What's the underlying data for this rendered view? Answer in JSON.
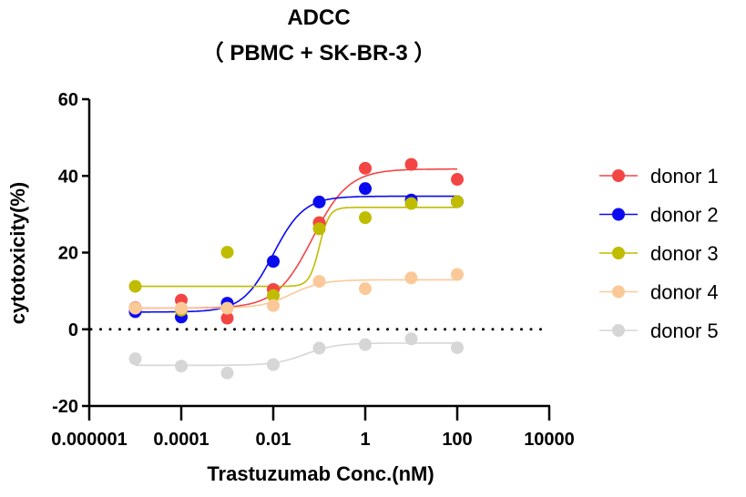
{
  "chart_data": {
    "type": "scatter",
    "title": "ADCC",
    "subtitle": "（ PBMC + SK-BR-3 ）",
    "xlabel": "Trastuzumab Conc.(nM)",
    "ylabel": "cytotoxicity(%)",
    "xscale": "log",
    "xlim": [
      1e-06,
      10000
    ],
    "ylim": [
      -20,
      60
    ],
    "xticks": [
      "0.000001",
      "0.0001",
      "0.01",
      "1",
      "100",
      "10000"
    ],
    "xtick_values": [
      1e-06,
      0.0001,
      0.01,
      1,
      100,
      10000
    ],
    "yticks": [
      60,
      40,
      20,
      0,
      -20
    ],
    "grid": false,
    "reference_line": {
      "y": 0,
      "style": "dotted"
    },
    "legend_position": "right",
    "x": [
      1e-05,
      0.0001,
      0.001,
      0.01,
      0.1,
      1,
      10,
      100
    ],
    "series": [
      {
        "name": "donor 1",
        "color": "#f44545",
        "values": [
          5.6,
          7.6,
          2.9,
          10.4,
          27.8,
          42.0,
          43.0,
          39.1
        ],
        "fit": {
          "bottom": 5.5,
          "top": 41.8,
          "logEC50": -1.15,
          "hill": 1.1
        }
      },
      {
        "name": "donor 2",
        "color": "#0a0af0",
        "values": [
          4.6,
          3.2,
          6.8,
          17.7,
          33.2,
          36.7,
          33.7,
          33.3
        ],
        "fit": {
          "bottom": 4.5,
          "top": 34.7,
          "logEC50": -2.0,
          "hill": 1.3
        }
      },
      {
        "name": "donor 3",
        "color": "#c0bc00",
        "values": [
          11.2,
          5.0,
          20.1,
          8.8,
          26.2,
          29.1,
          32.8,
          33.3
        ],
        "fit": {
          "bottom": 11.2,
          "top": 31.8,
          "logEC50": -1.0,
          "hill": 4.0
        }
      },
      {
        "name": "donor 4",
        "color": "#fbc998",
        "values": [
          5.5,
          5.5,
          5.5,
          6.2,
          12.5,
          10.6,
          13.4,
          14.3
        ],
        "fit": {
          "bottom": 5.5,
          "top": 12.9,
          "logEC50": -1.6,
          "hill": 1.3
        }
      },
      {
        "name": "donor 5",
        "color": "#d6d6d6",
        "values": [
          -7.7,
          -9.6,
          -11.4,
          -9.2,
          -4.9,
          -4.0,
          -2.5,
          -4.8
        ],
        "fit": {
          "bottom": -9.4,
          "top": -3.6,
          "logEC50": -1.3,
          "hill": 1.3
        }
      }
    ]
  }
}
